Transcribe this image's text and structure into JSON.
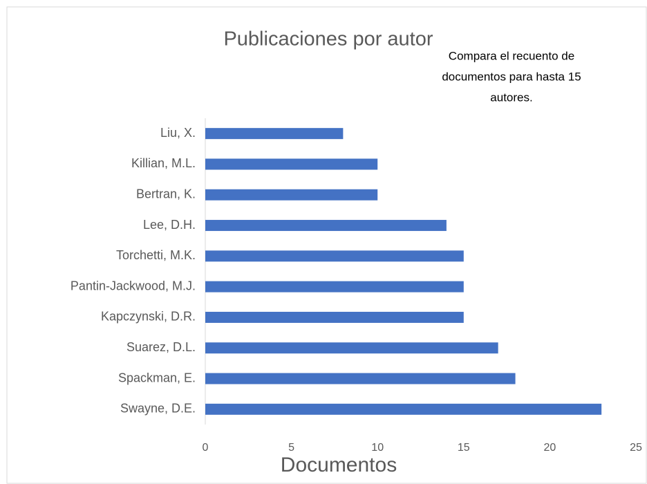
{
  "chart_data": {
    "type": "hbar",
    "title": "Publicaciones por autor",
    "annotation": [
      "Compara el recuento de",
      "documentos para hasta 15",
      "autores."
    ],
    "x_label": "Documentos",
    "categories": [
      "Liu, X.",
      "Killian, M.L.",
      "Bertran, K.",
      "Lee, D.H.",
      "Torchetti, M.K.",
      "Pantin-Jackwood, M.J.",
      "Kapczynski, D.R.",
      "Suarez, D.L.",
      "Spackman, E.",
      "Swayne, D.E."
    ],
    "values": [
      8,
      10,
      10,
      14,
      15,
      15,
      15,
      17,
      18,
      23
    ],
    "color": "#4472c4",
    "xlim": [
      0,
      25
    ],
    "xticks": [
      0,
      5,
      10,
      15,
      20,
      25
    ],
    "grid": false
  }
}
